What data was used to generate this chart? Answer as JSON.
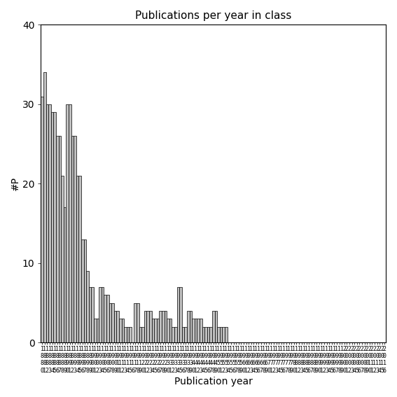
{
  "title": "Publications per year in class",
  "xlabel": "Publication year",
  "ylabel": "#P",
  "start_year": 1880,
  "end_year": 2016,
  "values": [
    31,
    34,
    30,
    30,
    29,
    29,
    26,
    26,
    21,
    17,
    30,
    30,
    26,
    26,
    21,
    21,
    13,
    13,
    9,
    7,
    7,
    3,
    3,
    7,
    7,
    6,
    6,
    5,
    5,
    4,
    4,
    3,
    3,
    2,
    2,
    2,
    0,
    5,
    5,
    2,
    2,
    4,
    4,
    4,
    3,
    3,
    3,
    4,
    4,
    4,
    3,
    3,
    2,
    2,
    7,
    7,
    2,
    2,
    4,
    4,
    3,
    3,
    3,
    3,
    2,
    2,
    2,
    2,
    4,
    4,
    2,
    2,
    2,
    2,
    0,
    0,
    0,
    0,
    0,
    0,
    0,
    0,
    0,
    0,
    0,
    0,
    0,
    0,
    0,
    0,
    0,
    0,
    0,
    0,
    0,
    0,
    0,
    0,
    0,
    0,
    0,
    0,
    0,
    0,
    0,
    0,
    0,
    0,
    0,
    0,
    0,
    0,
    0,
    0,
    0,
    0,
    0,
    0,
    0,
    0,
    0,
    0,
    0,
    0,
    0,
    0,
    0,
    0,
    0,
    0,
    0,
    0,
    0,
    0,
    0,
    0,
    0
  ],
  "bar_color": "#c0c0c0",
  "bar_edge_color": "#000000",
  "bar_linewidth": 0.5,
  "bar_width": 0.85,
  "ylim": [
    0,
    40
  ],
  "yticks": [
    0,
    10,
    20,
    30,
    40
  ],
  "bg_color": "#ffffff",
  "title_fontsize": 11,
  "axis_label_fontsize": 10,
  "tick_label_fontsize": 6
}
